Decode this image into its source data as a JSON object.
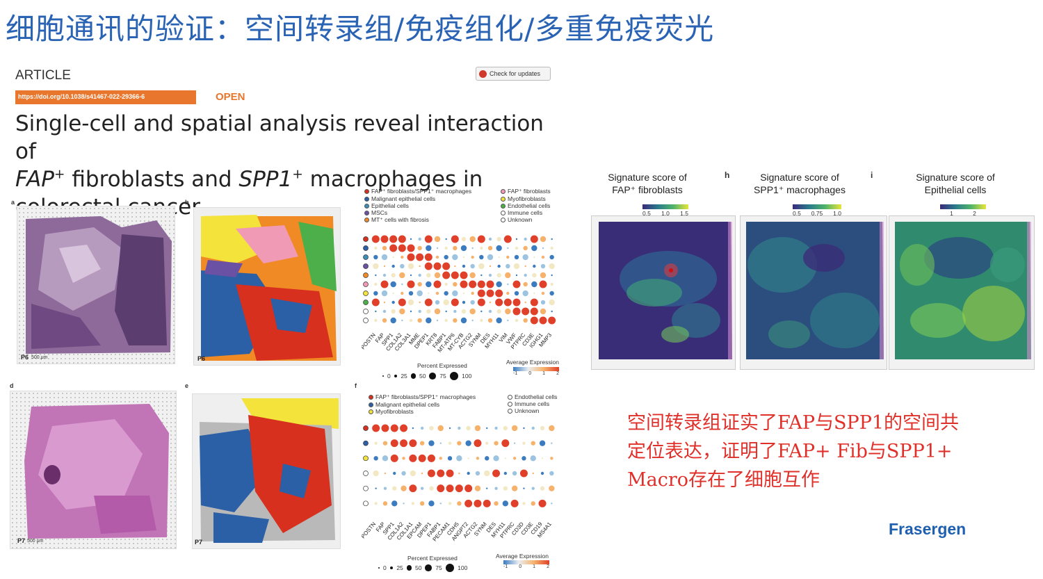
{
  "slide": {
    "title": "细胞通讯的验证：空间转录组/免疫组化/多重免疫荧光"
  },
  "article": {
    "label": "ARTICLE",
    "check_updates": "Check for updates",
    "doi": "https://doi.org/10.1038/s41467-022-29366-6",
    "open": "OPEN",
    "title_line1": "Single-cell and spatial analysis reveal interaction of",
    "title_fap": "FAP",
    "title_plus": "+",
    "title_mid": " fibroblasts and ",
    "title_spp1": "SPP1",
    "title_end": " macrophages in",
    "title_line3": "colorectal cancer"
  },
  "panels": {
    "a": "a",
    "b": "b",
    "d": "d",
    "e": "e",
    "f": "f",
    "h": "h",
    "i": "i",
    "p6": "P6",
    "p7": "P7",
    "scale": "500 μm"
  },
  "legend_top": {
    "left": [
      {
        "label": "FAP⁺ fibroblasts/SPP1⁺ macrophages",
        "color": "#d7301f"
      },
      {
        "label": "Malignant epithelial cells",
        "color": "#2b5fa6"
      },
      {
        "label": "Epithelial cells",
        "color": "#3a8fb7"
      },
      {
        "label": "MSCs",
        "color": "#6a51a3"
      },
      {
        "label": "MT⁺ cells with fibrosis",
        "color": "#f08a24"
      }
    ],
    "right": [
      {
        "label": "FAP⁺ fibroblasts",
        "color": "#f09ab5"
      },
      {
        "label": "Myofibroblasts",
        "color": "#f3e33a"
      },
      {
        "label": "Endothelial cells",
        "color": "#4daf4a"
      },
      {
        "label": "Immune cells",
        "color": "#ffffff"
      },
      {
        "label": "Unknown",
        "color": "#ffffff"
      }
    ]
  },
  "legend_bottom": {
    "left": [
      {
        "label": "FAP⁺ fibroblasts/SPP1⁺ macrophages",
        "color": "#d7301f"
      },
      {
        "label": "Malignant epithelial cells",
        "color": "#2b5fa6"
      },
      {
        "label": "Myofibroblasts",
        "color": "#f3e33a"
      }
    ],
    "right": [
      {
        "label": "Endothelial cells",
        "color": "#ffffff"
      },
      {
        "label": "Immune cells",
        "color": "#ffffff"
      },
      {
        "label": "Unknown",
        "color": "#ffffff"
      }
    ]
  },
  "dotplot_top": {
    "genes": [
      "POSTN",
      "FAP",
      "SPP1",
      "COL1A2",
      "COL3A1",
      "MME",
      "DPEP1",
      "KRT8",
      "FABP1",
      "MT-ATP6",
      "MT-CYB",
      "ACTG2",
      "SYNM",
      "DES",
      "MYH11",
      "VIM",
      "VWF",
      "PTPRC",
      "CD3E",
      "IGHG1",
      "MMP3"
    ],
    "percent_label": "Percent Expressed",
    "percent_ticks": [
      "0",
      "25",
      "50",
      "75",
      "100"
    ],
    "avg_label": "Average Expression",
    "avg_ticks": [
      "-1",
      "0",
      "1",
      "2"
    ]
  },
  "dotplot_bottom": {
    "genes": [
      "POSTN",
      "FAP",
      "SPP1",
      "COL1A2",
      "COL1A1",
      "EPCAM",
      "DPEP1",
      "FABP1",
      "PECAM1",
      "CDH5",
      "ANGPT2",
      "ACTG2",
      "SYNM",
      "DES",
      "MYH11",
      "PTPRC",
      "CD3D",
      "CD3E",
      "CD19",
      "MS4A1"
    ],
    "percent_label": "Percent Expressed",
    "percent_ticks": [
      "0",
      "25",
      "50",
      "75",
      "100"
    ],
    "avg_label": "Average Expression",
    "avg_ticks": [
      "-1",
      "0",
      "1",
      "2"
    ]
  },
  "signature": {
    "g": {
      "title1": "Signature score of",
      "title2": "FAP⁺ fibroblasts",
      "scale": [
        "0.5",
        "1.0",
        "1.5"
      ]
    },
    "h": {
      "title1": "Signature score of",
      "title2": "SPP1⁺ macrophages",
      "scale": [
        "0.5",
        "0.75",
        "1.0"
      ]
    },
    "i": {
      "title1": "Signature score of",
      "title2": "Epithelial cells",
      "scale": [
        "1",
        "2"
      ]
    }
  },
  "note": {
    "line1": "空间转录组证实了FAP与SPP1的空间共",
    "line2": "定位表达，证明了FAP+ Fib与SPP1+",
    "line3": "Macro存在了细胞互作"
  },
  "brand": {
    "logo": "Frasergen"
  }
}
